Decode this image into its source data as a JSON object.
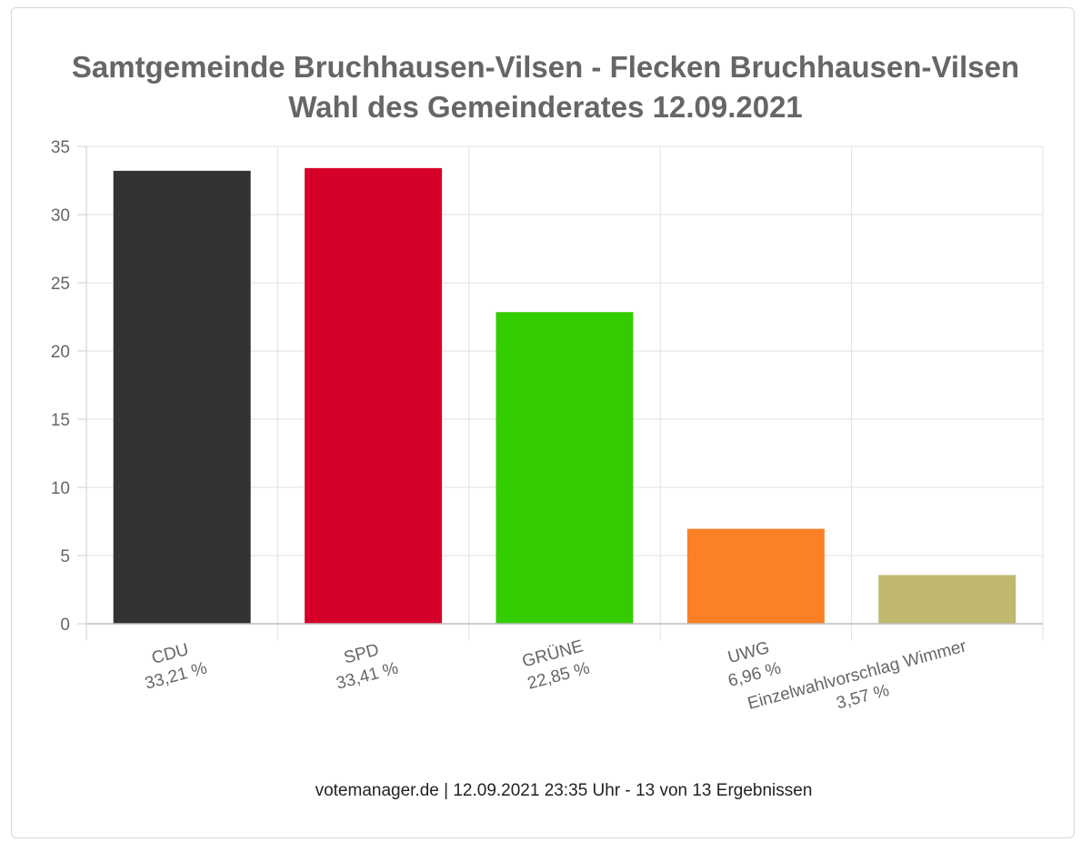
{
  "title_line1": "Samtgemeinde Bruchhausen-Vilsen - Flecken Bruchhausen-Vilsen",
  "title_line2": "Wahl des Gemeinderates 12.09.2021",
  "footer": "votemanager.de | 12.09.2021 23:35 Uhr - 13 von 13 Ergebnissen",
  "chart_data": {
    "type": "bar",
    "title": "Samtgemeinde Bruchhausen-Vilsen - Flecken Bruchhausen-Vilsen Wahl des Gemeinderates 12.09.2021",
    "categories": [
      "CDU",
      "SPD",
      "GRÜNE",
      "UWG",
      "Einzelwahlvorschlag Wimmer"
    ],
    "value_labels": [
      "33,21 %",
      "33,41 %",
      "22,85 %",
      "6,96 %",
      "3,57 %"
    ],
    "values": [
      33.21,
      33.41,
      22.85,
      6.96,
      3.57
    ],
    "colors": [
      "#333333",
      "#d5002a",
      "#33cc00",
      "#fc8025",
      "#bfb86e"
    ],
    "yticks": [
      0,
      5,
      10,
      15,
      20,
      25,
      30,
      35
    ],
    "ylim": [
      0,
      35
    ],
    "grid": true,
    "xlabel": "",
    "ylabel": ""
  }
}
